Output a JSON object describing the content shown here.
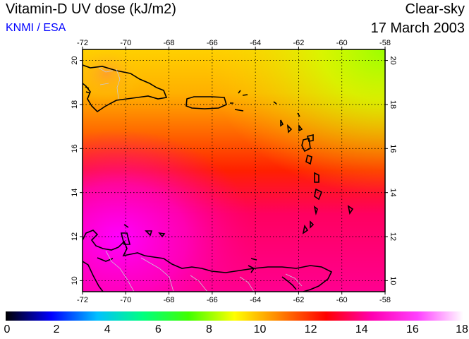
{
  "header": {
    "title": "Vitamin-D UV dose (kJ/m2)",
    "agency": "KNMI / ESA",
    "condition": "Clear-sky",
    "date": "17 March 2003"
  },
  "map": {
    "region": "Caribbean",
    "lon_ticks": [
      "-72",
      "-70",
      "-68",
      "-66",
      "-64",
      "-62",
      "-60",
      "-58"
    ],
    "lat_ticks": [
      "10",
      "12",
      "14",
      "16",
      "18",
      "20"
    ],
    "lon_range": [
      -72,
      -58
    ],
    "lat_range": [
      9.5,
      20.5
    ],
    "grid": true,
    "field_description_colors": {
      "north_east": "#9bff00",
      "north": "#ffd000",
      "center": "#ff2000",
      "south_west": "#ff00ff"
    }
  },
  "colorbar": {
    "min": 0,
    "max": 18,
    "labels": [
      "0",
      "2",
      "4",
      "6",
      "8",
      "10",
      "12",
      "14",
      "16",
      "18"
    ],
    "stops": [
      "#000000",
      "#0000ff",
      "#00c0ff",
      "#00ff80",
      "#40ff00",
      "#ffff00",
      "#ff8000",
      "#ff0000",
      "#ff00b0",
      "#ff40ff",
      "#ffffff"
    ]
  }
}
